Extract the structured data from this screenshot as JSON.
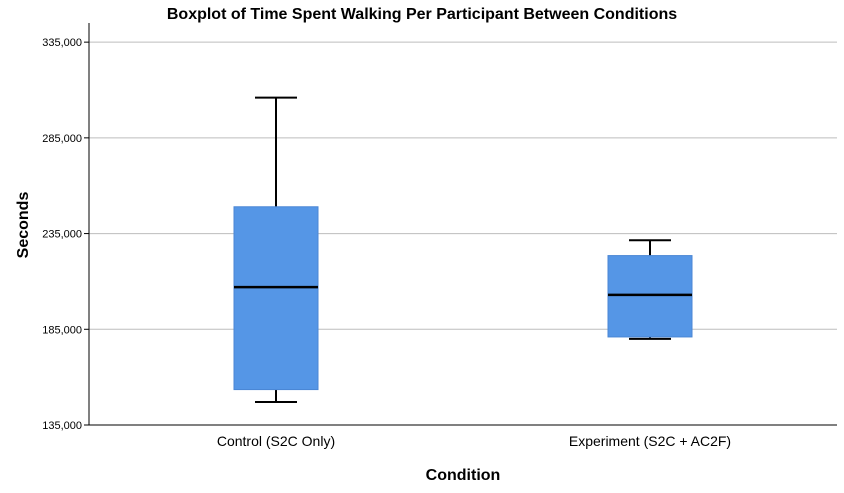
{
  "chart_data": {
    "type": "boxplot",
    "title": "Boxplot of Time Spent Walking Per Participant Between Conditions",
    "xlabel": "Condition",
    "ylabel": "Seconds",
    "ylim": [
      135000,
      345000
    ],
    "yticks": [
      135000,
      185000,
      235000,
      285000,
      335000
    ],
    "ytick_labels": [
      "135,000",
      "185,000",
      "235,000",
      "285,000",
      "335,000"
    ],
    "grid": true,
    "box_color": "#5596e6",
    "categories": [
      "Control (S2C Only)",
      "Experiment (S2C + AC2F)"
    ],
    "boxes": [
      {
        "category": "Control (S2C Only)",
        "min": 147000,
        "q1": 153500,
        "median": 207000,
        "q3": 249000,
        "max": 306000
      },
      {
        "category": "Experiment (S2C + AC2F)",
        "min": 180000,
        "q1": 181000,
        "median": 203000,
        "q3": 223500,
        "max": 231500
      }
    ]
  }
}
